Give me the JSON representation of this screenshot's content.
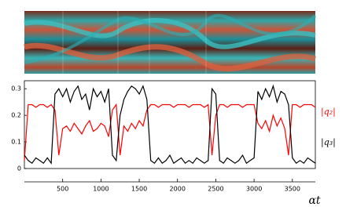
{
  "chart_data": {
    "type": "line",
    "x_label": "αt",
    "x": [
      0,
      50,
      100,
      150,
      200,
      250,
      300,
      350,
      400,
      450,
      500,
      550,
      600,
      650,
      700,
      750,
      800,
      850,
      900,
      950,
      1000,
      1050,
      1100,
      1150,
      1200,
      1250,
      1300,
      1350,
      1400,
      1450,
      1500,
      1550,
      1600,
      1650,
      1700,
      1750,
      1800,
      1850,
      1900,
      1950,
      2000,
      2050,
      2100,
      2150,
      2200,
      2250,
      2300,
      2350,
      2400,
      2450,
      2500,
      2550,
      2600,
      2650,
      2700,
      2750,
      2800,
      2850,
      2900,
      2950,
      3000,
      3050,
      3100,
      3150,
      3200,
      3250,
      3300,
      3350,
      3400,
      3450,
      3500,
      3550,
      3600,
      3650,
      3700,
      3750,
      3800
    ],
    "series": [
      {
        "name": "|q₂|",
        "color": "#ff0000",
        "values": [
          0.03,
          0.24,
          0.24,
          0.23,
          0.24,
          0.24,
          0.23,
          0.24,
          0.22,
          0.05,
          0.15,
          0.16,
          0.14,
          0.17,
          0.15,
          0.13,
          0.16,
          0.18,
          0.14,
          0.15,
          0.17,
          0.16,
          0.12,
          0.22,
          0.24,
          0.05,
          0.16,
          0.14,
          0.17,
          0.15,
          0.18,
          0.16,
          0.22,
          0.24,
          0.24,
          0.23,
          0.24,
          0.24,
          0.24,
          0.23,
          0.24,
          0.24,
          0.24,
          0.23,
          0.24,
          0.24,
          0.24,
          0.23,
          0.24,
          0.05,
          0.2,
          0.24,
          0.24,
          0.23,
          0.24,
          0.24,
          0.24,
          0.23,
          0.24,
          0.24,
          0.24,
          0.17,
          0.15,
          0.18,
          0.14,
          0.2,
          0.16,
          0.19,
          0.15,
          0.05,
          0.24,
          0.24,
          0.23,
          0.24,
          0.24,
          0.24,
          0.23
        ]
      },
      {
        "name": "|q₃|",
        "color": "#000000",
        "values": [
          0.05,
          0.03,
          0.02,
          0.04,
          0.03,
          0.02,
          0.04,
          0.02,
          0.28,
          0.3,
          0.27,
          0.3,
          0.25,
          0.29,
          0.31,
          0.26,
          0.28,
          0.22,
          0.3,
          0.27,
          0.29,
          0.25,
          0.3,
          0.05,
          0.03,
          0.2,
          0.26,
          0.29,
          0.31,
          0.3,
          0.28,
          0.31,
          0.26,
          0.03,
          0.02,
          0.04,
          0.02,
          0.03,
          0.05,
          0.02,
          0.03,
          0.04,
          0.02,
          0.03,
          0.02,
          0.04,
          0.03,
          0.02,
          0.03,
          0.3,
          0.28,
          0.03,
          0.02,
          0.04,
          0.03,
          0.02,
          0.03,
          0.05,
          0.02,
          0.03,
          0.04,
          0.29,
          0.26,
          0.3,
          0.27,
          0.31,
          0.25,
          0.29,
          0.28,
          0.24,
          0.04,
          0.02,
          0.03,
          0.02,
          0.04,
          0.03,
          0.02
        ]
      }
    ],
    "xlim": [
      0,
      3800
    ],
    "xticks": [
      500,
      1000,
      1500,
      2000,
      2500,
      3000,
      3500
    ],
    "ylim": [
      0,
      0.33
    ],
    "yticks": [
      0,
      0.1,
      0.2,
      0.3
    ]
  }
}
